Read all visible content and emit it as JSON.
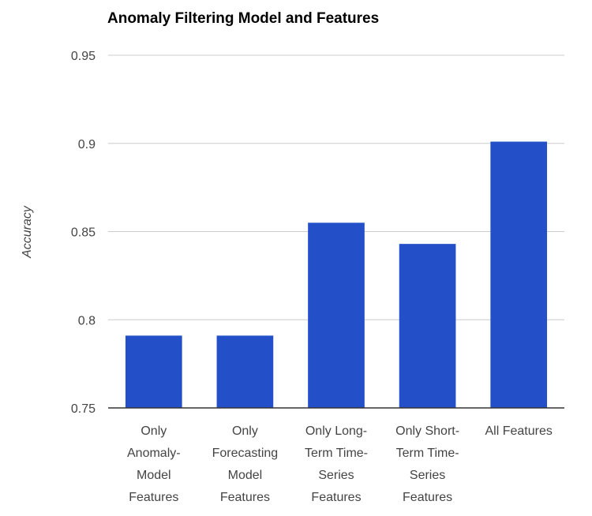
{
  "chart_data": {
    "type": "bar",
    "title": "Anomaly Filtering Model and Features",
    "ylabel": "Accuracy",
    "xlabel": "",
    "categories": [
      [
        "Only",
        "Anomaly-",
        "Model",
        "Features"
      ],
      [
        "Only",
        "Forecasting",
        "Model",
        "Features"
      ],
      [
        "Only Long-",
        "Term Time-",
        "Series",
        "Features"
      ],
      [
        "Only Short-",
        "Term Time-",
        "Series",
        "Features"
      ],
      [
        "All Features"
      ]
    ],
    "values": [
      0.791,
      0.791,
      0.855,
      0.843,
      0.901
    ],
    "ylim": [
      0.75,
      0.95
    ],
    "yticks": [
      "0.75",
      "0.8",
      "0.85",
      "0.9",
      "0.95"
    ],
    "grid": true,
    "legend": "none",
    "bar_color": "#2350c8"
  }
}
